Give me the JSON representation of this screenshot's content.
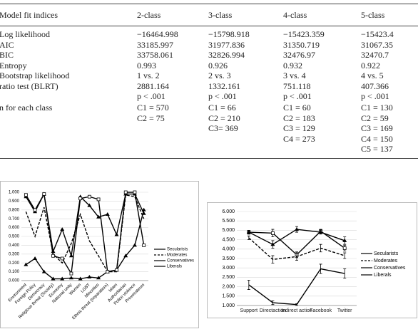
{
  "table": {
    "header": [
      "Model fit indices",
      "2-class",
      "3-class",
      "4-class",
      "5-class"
    ],
    "rows": [
      [
        "Log likelihood",
        "−16464.998",
        "−15798.918",
        "−15423.359",
        "−15423.4"
      ],
      [
        "AIC",
        "33185.997",
        "31977.836",
        "31350.719",
        "31067.35"
      ],
      [
        "BIC",
        "33758.061",
        "32826.994",
        "32476.97",
        "32470.7"
      ],
      [
        "Entropy",
        "0.993",
        "0.926",
        "0.932",
        "0.922"
      ],
      [
        "Bootstrap likelihood",
        "1 vs. 2",
        "2 vs. 3",
        "3 vs. 4",
        "4 vs. 5"
      ],
      [
        "ratio test (BLRT)",
        "2881.164",
        "1332.161",
        "751.118",
        "407.366"
      ],
      [
        null,
        "p < .001",
        "p < .001",
        "p < .001",
        "p < .001"
      ],
      [
        "n for each class",
        [
          "C1 = 570",
          "C2 = 75"
        ],
        [
          "C1 = 66",
          "C2 = 210",
          "C3= 369"
        ],
        [
          "C1 = 60",
          "C2 = 183",
          "C3 = 129",
          "C4 = 273"
        ],
        [
          "C1 = 130",
          "C2 = 59",
          "C3 = 169",
          "C4 = 150",
          "C5 = 137"
        ]
      ]
    ]
  },
  "chart_data": [
    {
      "type": "line",
      "categories": [
        "Environment",
        "Foreign Policy",
        "Democracy",
        "Religious threat (Society)",
        "Economy",
        "National unity",
        "Women",
        "LGBT",
        "Minorities",
        "Ethnic threat (separatism)",
        "Islam",
        "Authoritarian",
        "Police violence",
        "Provocateurs"
      ],
      "series": [
        {
          "name": "Secularists",
          "color": "#000000",
          "marker": "triangle",
          "dashed": false,
          "values": [
            0.95,
            0.78,
            0.98,
            0.33,
            0.58,
            0.28,
            0.95,
            0.85,
            0.72,
            0.75,
            0.52,
            0.98,
            0.98,
            0.76
          ]
        },
        {
          "name": "Moderates",
          "color": "#000000",
          "marker": "none",
          "dashed": true,
          "values": [
            0.78,
            0.5,
            0.83,
            0.3,
            0.2,
            0.42,
            0.75,
            0.45,
            0.28,
            0.1,
            0.1,
            0.97,
            0.95,
            0.7
          ]
        },
        {
          "name": "Conservatives",
          "color": "#000000",
          "marker": "triangle",
          "dashed": false,
          "values": [
            0.18,
            0.25,
            0.1,
            0.02,
            0.02,
            0.03,
            0.02,
            0.04,
            0.03,
            0.1,
            0.12,
            0.28,
            0.4,
            0.8
          ]
        },
        {
          "name": "Liberals",
          "color": "#000000",
          "marker": "square",
          "dashed": false,
          "values": [
            0.97,
            0.8,
            0.98,
            0.28,
            0.25,
            0.08,
            0.93,
            0.95,
            0.92,
            0.1,
            0.12,
            1.0,
            1.0,
            0.4
          ]
        }
      ],
      "ylim": [
        0,
        1
      ],
      "yticks": [
        {
          "value": 0,
          "label": "0.000"
        },
        {
          "value": 0.1,
          "label": "0.100"
        },
        {
          "value": 0.2,
          "label": "0.200"
        },
        {
          "value": 0.3,
          "label": "0.300"
        },
        {
          "value": 0.4,
          "label": "0.400"
        },
        {
          "value": 0.5,
          "label": "0.500"
        },
        {
          "value": 0.6,
          "label": "0.600"
        },
        {
          "value": 0.7,
          "label": "0.700"
        },
        {
          "value": 0.8,
          "label": "0.800"
        },
        {
          "value": 0.9,
          "label": "0.900"
        },
        {
          "value": 1,
          "label": "1.000"
        }
      ],
      "grid": true,
      "legend": "right"
    },
    {
      "type": "line",
      "categories": [
        "Support",
        "Directaction",
        "Indirect action",
        "Facebook",
        "Twitter"
      ],
      "series": [
        {
          "name": "Secularists",
          "color": "#000000",
          "marker": "square",
          "dashed": false,
          "values": [
            4.9,
            4.85,
            3.7,
            4.95,
            4.05
          ],
          "errors": [
            0.1,
            0.2,
            0.15,
            0.1,
            0.15
          ]
        },
        {
          "name": "Moderates",
          "color": "#000000",
          "marker": "none",
          "dashed": true,
          "values": [
            4.6,
            3.45,
            3.6,
            4.05,
            3.65
          ],
          "errors": [
            0.1,
            0.2,
            0.2,
            0.2,
            0.15
          ]
        },
        {
          "name": "Conservatives",
          "color": "#000000",
          "marker": "triangle",
          "dashed": false,
          "values": [
            4.9,
            4.25,
            5.05,
            4.9,
            4.45
          ],
          "errors": [
            0.1,
            0.2,
            0.15,
            0.1,
            0.2
          ]
        },
        {
          "name": "Liberals",
          "color": "#000000",
          "marker": "none",
          "dashed": false,
          "values": [
            2.1,
            1.15,
            1.05,
            2.95,
            2.7
          ],
          "errors": [
            0.25,
            0.1,
            0.05,
            0.25,
            0.25
          ]
        }
      ],
      "ylim": [
        1,
        6
      ],
      "yticks": [
        {
          "value": 1,
          "label": "1.000"
        },
        {
          "value": 1.5,
          "label": "1.500"
        },
        {
          "value": 2,
          "label": "2.000"
        },
        {
          "value": 2.5,
          "label": "2.500"
        },
        {
          "value": 3,
          "label": "3.000"
        },
        {
          "value": 3.5,
          "label": "3.500"
        },
        {
          "value": 4,
          "label": "4.000"
        },
        {
          "value": 4.5,
          "label": "4.500"
        },
        {
          "value": 5,
          "label": "5.000"
        },
        {
          "value": 5.5,
          "label": "5.500"
        },
        {
          "value": 6,
          "label": "6.000"
        }
      ],
      "grid": true,
      "legend": "right"
    }
  ]
}
